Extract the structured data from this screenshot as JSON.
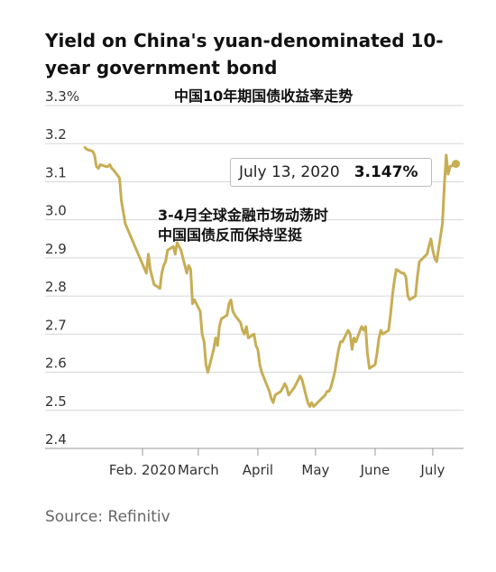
{
  "chart_data": {
    "type": "line",
    "title": "Yield on China's yuan-denominated 10-year government bond",
    "subtitle": "中国10年期国债收益率走势",
    "source": "Source: Refinitiv",
    "y_ticks": [
      "3.3%",
      "3.2",
      "3.1",
      "3.0",
      "2.9",
      "2.8",
      "2.7",
      "2.6",
      "2.5",
      "2.4"
    ],
    "ylim": [
      2.4,
      3.3
    ],
    "x_ticks": [
      "Feb. 2020",
      "March",
      "April",
      "May",
      "June",
      "July"
    ],
    "grid": true,
    "line_color": "#c7ae55",
    "callout": {
      "date": "July 13, 2020",
      "value": "3.147%"
    },
    "annotation": [
      "3-4月全球金融市场动荡时",
      "中国国债反而保持坚挺"
    ],
    "series": [
      {
        "x": [
          "2020-01-02",
          "2020-01-03",
          "2020-01-06",
          "2020-01-07",
          "2020-01-08",
          "2020-01-09",
          "2020-01-10",
          "2020-01-13",
          "2020-01-14",
          "2020-01-15",
          "2020-01-16",
          "2020-01-17",
          "2020-01-20",
          "2020-01-21",
          "2020-01-22",
          "2020-01-23",
          "2020-02-03",
          "2020-02-04",
          "2020-02-05",
          "2020-02-06",
          "2020-02-07",
          "2020-02-10",
          "2020-02-11",
          "2020-02-12",
          "2020-02-13",
          "2020-02-14",
          "2020-02-17",
          "2020-02-18",
          "2020-02-19",
          "2020-02-20",
          "2020-02-21",
          "2020-02-24",
          "2020-02-25",
          "2020-02-26",
          "2020-02-27",
          "2020-02-28",
          "2020-03-02",
          "2020-03-03",
          "2020-03-04",
          "2020-03-05",
          "2020-03-06",
          "2020-03-09",
          "2020-03-10",
          "2020-03-11",
          "2020-03-12",
          "2020-03-13",
          "2020-03-16",
          "2020-03-17",
          "2020-03-18",
          "2020-03-19",
          "2020-03-20",
          "2020-03-23",
          "2020-03-24",
          "2020-03-25",
          "2020-03-26",
          "2020-03-27",
          "2020-03-30",
          "2020-03-31",
          "2020-04-01",
          "2020-04-02",
          "2020-04-03",
          "2020-04-07",
          "2020-04-08",
          "2020-04-09",
          "2020-04-10",
          "2020-04-13",
          "2020-04-14",
          "2020-04-15",
          "2020-04-16",
          "2020-04-17",
          "2020-04-20",
          "2020-04-21",
          "2020-04-22",
          "2020-04-23",
          "2020-04-24",
          "2020-04-26",
          "2020-04-27",
          "2020-04-28",
          "2020-04-29",
          "2020-04-30",
          "2020-05-06",
          "2020-05-07",
          "2020-05-08",
          "2020-05-09",
          "2020-05-11",
          "2020-05-12",
          "2020-05-13",
          "2020-05-14",
          "2020-05-15",
          "2020-05-18",
          "2020-05-19",
          "2020-05-20",
          "2020-05-21",
          "2020-05-22",
          "2020-05-25",
          "2020-05-26",
          "2020-05-27",
          "2020-05-28",
          "2020-05-29",
          "2020-06-01",
          "2020-06-02",
          "2020-06-03",
          "2020-06-04",
          "2020-06-05",
          "2020-06-08",
          "2020-06-09",
          "2020-06-10",
          "2020-06-11",
          "2020-06-12",
          "2020-06-15",
          "2020-06-16",
          "2020-06-17",
          "2020-06-18",
          "2020-06-19",
          "2020-06-22",
          "2020-06-23",
          "2020-06-24",
          "2020-06-28",
          "2020-06-29",
          "2020-06-30",
          "2020-07-01",
          "2020-07-02",
          "2020-07-03",
          "2020-07-06",
          "2020-07-07",
          "2020-07-08",
          "2020-07-09",
          "2020-07-10",
          "2020-07-13"
        ],
        "y": [
          3.19,
          3.185,
          3.18,
          3.17,
          3.14,
          3.135,
          3.145,
          3.14,
          3.14,
          3.145,
          3.135,
          3.13,
          3.11,
          3.05,
          3.02,
          2.99,
          2.86,
          2.91,
          2.87,
          2.85,
          2.83,
          2.82,
          2.86,
          2.88,
          2.89,
          2.92,
          2.93,
          2.91,
          2.94,
          2.93,
          2.92,
          2.86,
          2.88,
          2.87,
          2.78,
          2.79,
          2.76,
          2.7,
          2.68,
          2.62,
          2.6,
          2.66,
          2.69,
          2.67,
          2.72,
          2.74,
          2.75,
          2.78,
          2.79,
          2.76,
          2.75,
          2.73,
          2.71,
          2.7,
          2.72,
          2.69,
          2.7,
          2.67,
          2.66,
          2.62,
          2.6,
          2.55,
          2.53,
          2.52,
          2.54,
          2.55,
          2.56,
          2.57,
          2.56,
          2.54,
          2.56,
          2.57,
          2.58,
          2.59,
          2.58,
          2.54,
          2.52,
          2.51,
          2.52,
          2.51,
          2.54,
          2.55,
          2.55,
          2.56,
          2.6,
          2.63,
          2.66,
          2.68,
          2.68,
          2.71,
          2.7,
          2.66,
          2.69,
          2.68,
          2.72,
          2.71,
          2.72,
          2.65,
          2.61,
          2.62,
          2.65,
          2.69,
          2.71,
          2.7,
          2.71,
          2.75,
          2.8,
          2.84,
          2.87,
          2.86,
          2.86,
          2.85,
          2.8,
          2.79,
          2.8,
          2.85,
          2.89,
          2.91,
          2.93,
          2.95,
          2.92,
          2.9,
          2.89,
          2.99,
          3.09,
          3.17,
          3.12,
          3.14,
          3.147
        ]
      }
    ]
  }
}
